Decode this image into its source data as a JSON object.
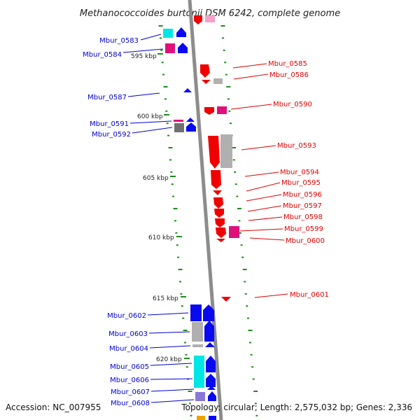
{
  "title": "Methanococcoides burtonii DSM 6242, complete genome",
  "footer": {
    "accession": "Accession: NC_007955",
    "topology": "Topology: circular; Length: 2,575,032 bp; Genes: 2,336"
  },
  "colors": {
    "backbone": "#8c8c8c",
    "tick": "#1e8c1e",
    "left_label": "#0000cc",
    "right_label": "#e00000",
    "blue": "#0a0af0",
    "red": "#f00000",
    "magenta": "#e0107a",
    "cyan": "#00e5e5",
    "gray": "#b0b0b0",
    "lavender": "#8a78d8",
    "orange": "#f0a000"
  },
  "kbp_labels": [
    {
      "id": "kbp-595",
      "text": "595 kbp"
    },
    {
      "id": "kbp-600",
      "text": "600 kbp"
    },
    {
      "id": "kbp-605",
      "text": "605 kbp"
    },
    {
      "id": "kbp-610",
      "text": "610 kbp"
    },
    {
      "id": "kbp-615",
      "text": "615 kbp"
    },
    {
      "id": "kbp-620",
      "text": "620 kbp"
    }
  ],
  "left_genes": [
    {
      "id": "Mbur_0583",
      "text": "Mbur_0583"
    },
    {
      "id": "Mbur_0584",
      "text": "Mbur_0584"
    },
    {
      "id": "Mbur_0587",
      "text": "Mbur_0587"
    },
    {
      "id": "Mbur_0591",
      "text": "Mbur_0591"
    },
    {
      "id": "Mbur_0592",
      "text": "Mbur_0592"
    },
    {
      "id": "Mbur_0602",
      "text": "Mbur_0602"
    },
    {
      "id": "Mbur_0603",
      "text": "Mbur_0603"
    },
    {
      "id": "Mbur_0604",
      "text": "Mbur_0604"
    },
    {
      "id": "Mbur_0605",
      "text": "Mbur_0605"
    },
    {
      "id": "Mbur_0606",
      "text": "Mbur_0606"
    },
    {
      "id": "Mbur_0607",
      "text": "Mbur_0607"
    },
    {
      "id": "Mbur_0608",
      "text": "Mbur_0608"
    }
  ],
  "right_genes": [
    {
      "id": "Mbur_0585",
      "text": "Mbur_0585"
    },
    {
      "id": "Mbur_0586",
      "text": "Mbur_0586"
    },
    {
      "id": "Mbur_0590",
      "text": "Mbur_0590"
    },
    {
      "id": "Mbur_0593",
      "text": "Mbur_0593"
    },
    {
      "id": "Mbur_0594",
      "text": "Mbur_0594"
    },
    {
      "id": "Mbur_0595",
      "text": "Mbur_0595"
    },
    {
      "id": "Mbur_0596",
      "text": "Mbur_0596"
    },
    {
      "id": "Mbur_0597",
      "text": "Mbur_0597"
    },
    {
      "id": "Mbur_0598",
      "text": "Mbur_0598"
    },
    {
      "id": "Mbur_0599",
      "text": "Mbur_0599"
    },
    {
      "id": "Mbur_0600",
      "text": "Mbur_0600"
    },
    {
      "id": "Mbur_0601",
      "text": "Mbur_0601"
    }
  ]
}
